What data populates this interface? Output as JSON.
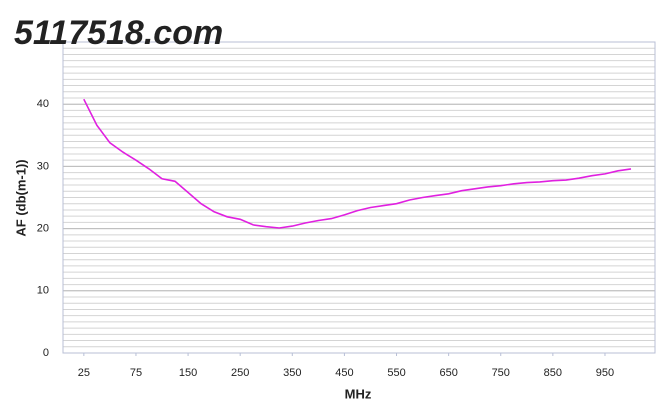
{
  "watermark": [
    "5117518",
    ".com"
  ],
  "chart_data": {
    "type": "line",
    "x_label": "MHz",
    "y_label": "AF (db(m-1))",
    "xlim": [
      -0.4,
      10.96
    ],
    "xticks": [
      {
        "value": 0,
        "label": "25"
      },
      {
        "value": 1,
        "label": "75"
      },
      {
        "value": 2,
        "label": "150"
      },
      {
        "value": 3,
        "label": "250"
      },
      {
        "value": 4,
        "label": "350"
      },
      {
        "value": 5,
        "label": "450"
      },
      {
        "value": 6,
        "label": "550"
      },
      {
        "value": 7,
        "label": "650"
      },
      {
        "value": 8,
        "label": "750"
      },
      {
        "value": 9,
        "label": "850"
      },
      {
        "value": 10,
        "label": "950"
      }
    ],
    "ylim": [
      0,
      50
    ],
    "yticks": [
      0,
      10,
      20,
      30,
      40
    ],
    "grid": true,
    "grid_step": 1,
    "series": [
      {
        "color": "#e020e0",
        "x": [
          0,
          0.25,
          0.5,
          0.75,
          1,
          1.25,
          1.5,
          1.75,
          2,
          2.25,
          2.5,
          2.75,
          3,
          3.25,
          3.5,
          3.75,
          4,
          4.25,
          4.5,
          4.75,
          5,
          5.25,
          5.5,
          5.75,
          6,
          6.25,
          6.5,
          6.75,
          7,
          7.25,
          7.5,
          7.75,
          8,
          8.25,
          8.5,
          8.75,
          9,
          9.25,
          9.5,
          9.75,
          10,
          10.25,
          10.5
        ],
        "values": [
          40.8,
          36.6,
          33.8,
          32.3,
          31.0,
          29.6,
          28.0,
          27.6,
          25.8,
          24.0,
          22.7,
          21.9,
          21.5,
          20.6,
          20.3,
          20.1,
          20.4,
          20.9,
          21.3,
          21.6,
          22.2,
          22.9,
          23.4,
          23.7,
          24.0,
          24.6,
          25.0,
          25.3,
          25.6,
          26.1,
          26.4,
          26.7,
          26.9,
          27.2,
          27.4,
          27.5,
          27.7,
          27.8,
          28.1,
          28.5,
          28.8,
          29.3,
          29.6
        ]
      }
    ]
  }
}
